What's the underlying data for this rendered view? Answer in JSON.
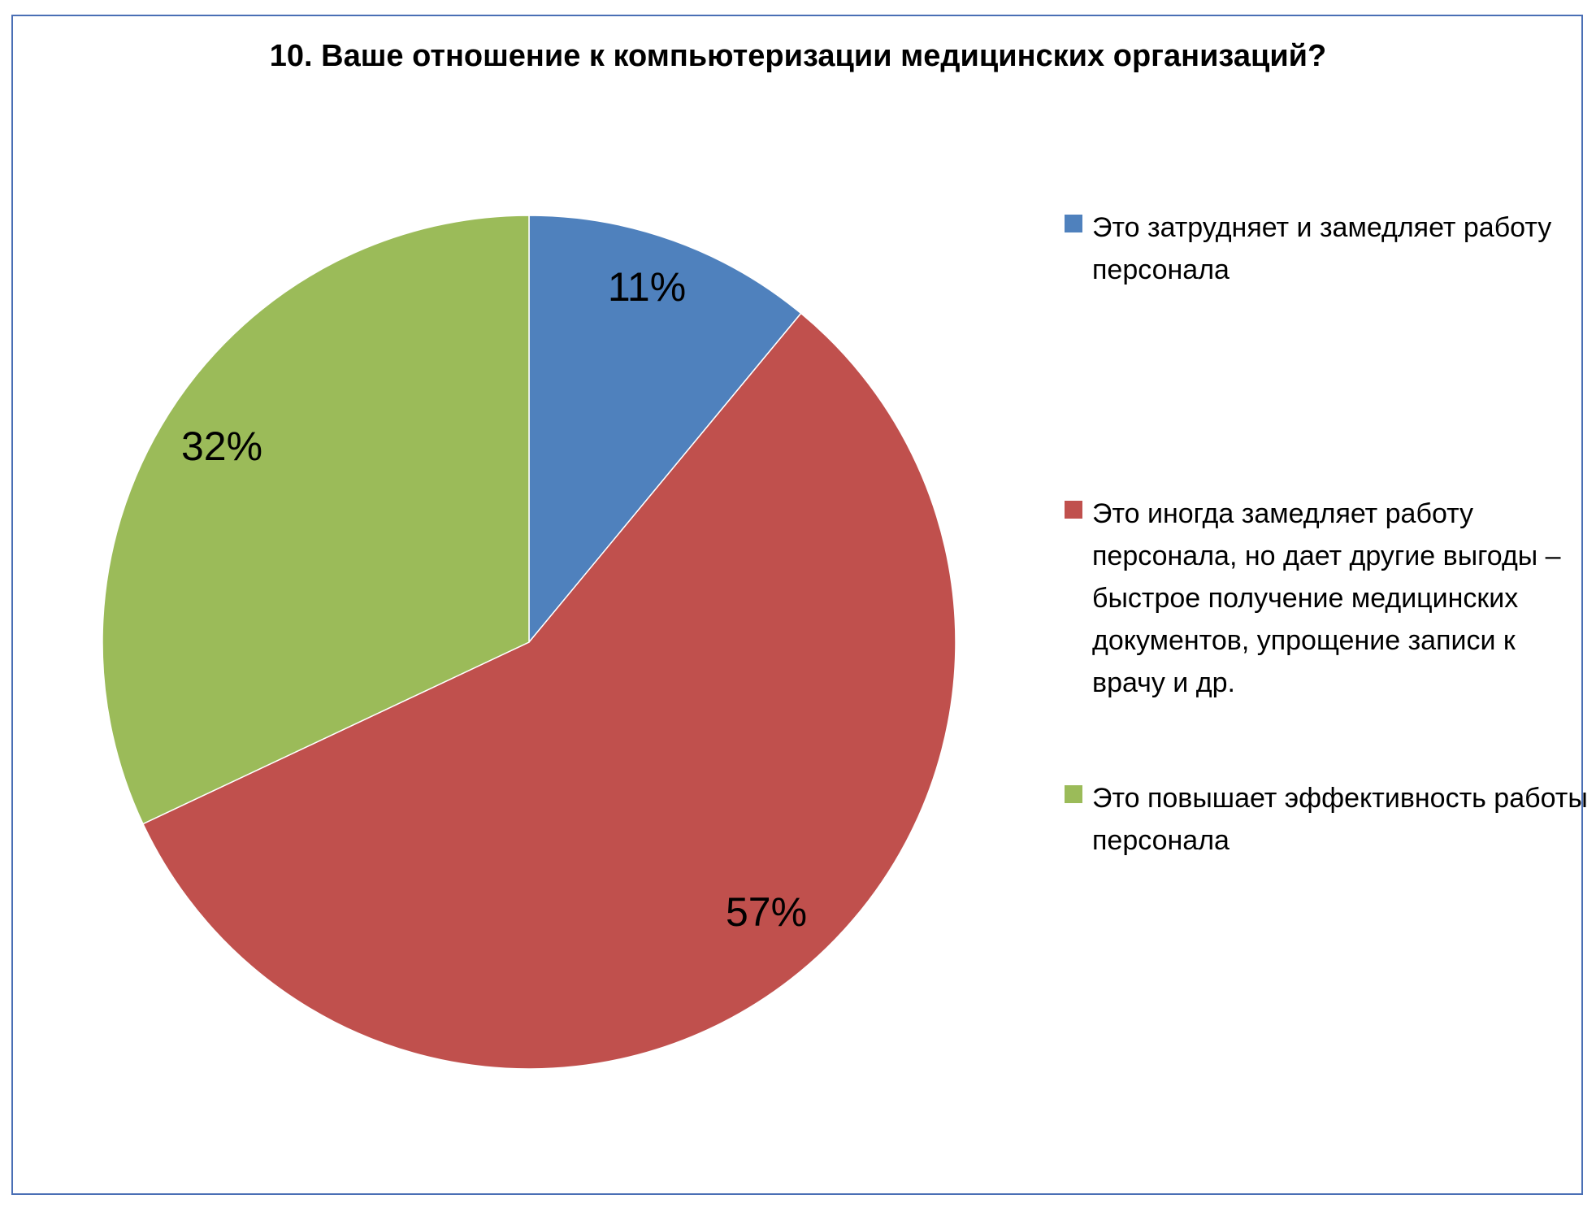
{
  "chart_data": {
    "type": "pie",
    "title": "10. Ваше отношение к компьютеризации медицинских организаций?",
    "slices": [
      {
        "label": "Это затрудняет и замедляет работу персонала",
        "value": 11,
        "display": "11%",
        "color": "#4f81bd"
      },
      {
        "label": "Это иногда замедляет работу персонала, но дает другие выгоды – быстрое получение медицинских документов, упрощение записи к врачу и др.",
        "value": 57,
        "display": "57%",
        "color": "#c0504d"
      },
      {
        "label": "Это повышает эффективность работы персонала",
        "value": 32,
        "display": "32%",
        "color": "#9bbb59"
      }
    ],
    "start_angle": "12 o'clock",
    "direction": "clockwise",
    "legend_position": "right"
  }
}
